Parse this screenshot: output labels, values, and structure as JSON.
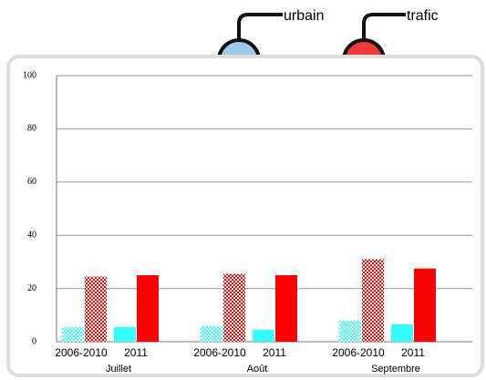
{
  "chart_data": {
    "type": "bar",
    "categories": [
      "Juillet",
      "Août",
      "Septembre"
    ],
    "periods": [
      "2006-2010",
      "2011"
    ],
    "series": [
      {
        "name": "urbain",
        "color": "#33ffff",
        "values": [
          [
            5.5,
            5.5
          ],
          [
            6,
            4.5
          ],
          [
            8,
            6.5
          ]
        ]
      },
      {
        "name": "trafic",
        "color": "#ff0000",
        "values": [
          [
            24.5,
            25
          ],
          [
            25.5,
            25
          ],
          [
            31,
            27.5
          ]
        ]
      }
    ],
    "ylim": [
      0,
      100
    ],
    "yticks": [
      0,
      20,
      40,
      60,
      80,
      100
    ],
    "grid": true
  }
}
